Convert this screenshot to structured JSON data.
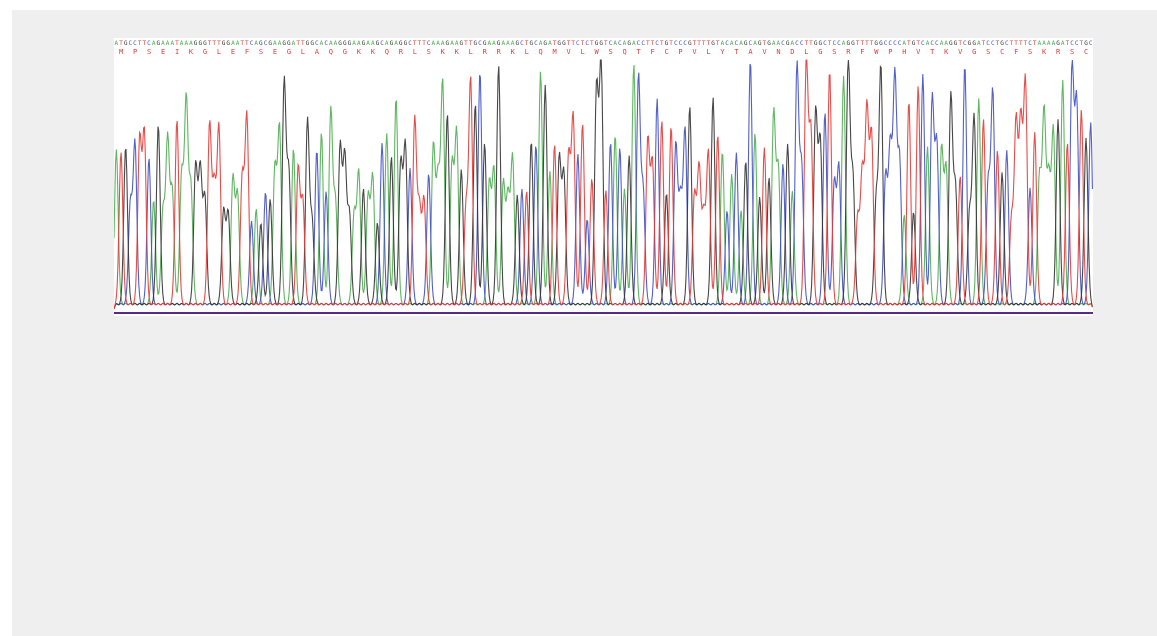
{
  "chart_data": {
    "type": "line",
    "title": "",
    "xlabel": "",
    "ylabel": "",
    "ylim": [
      0,
      100
    ],
    "grid": false,
    "legend": "none",
    "base_sequence": "ATGCCTTCAGAAATAAAGGGTTTGGAATTCAGCGAAGGATTGGCACAAGGGAAGAAGCAGAGGCTTTCAAAGAAGTTGCGAAGAAAGCTGCAGATGGTTCTCTGGTCACAGACCTTCTGTCCCGTTTTGTACACAGCAGTGAACGACCTTGGCTCCAGGTTTTGGCCCCATGTCACCAAGGTCGGATCCTGCTTTTCTAAAAGATCCTGC",
    "protein_sequence": "MPSEIKGLEFSEGLAQGKKQRLSKKLRRKLQMVLWSQTFCPVLYTAVNDLGSRFWPHVTKVGSCFSKRSC",
    "series": [
      {
        "key": "A",
        "color": "#4caf50"
      },
      {
        "key": "C",
        "color": "#3f4fc4"
      },
      {
        "key": "G",
        "color": "#333333"
      },
      {
        "key": "T",
        "color": "#e53935"
      }
    ]
  }
}
